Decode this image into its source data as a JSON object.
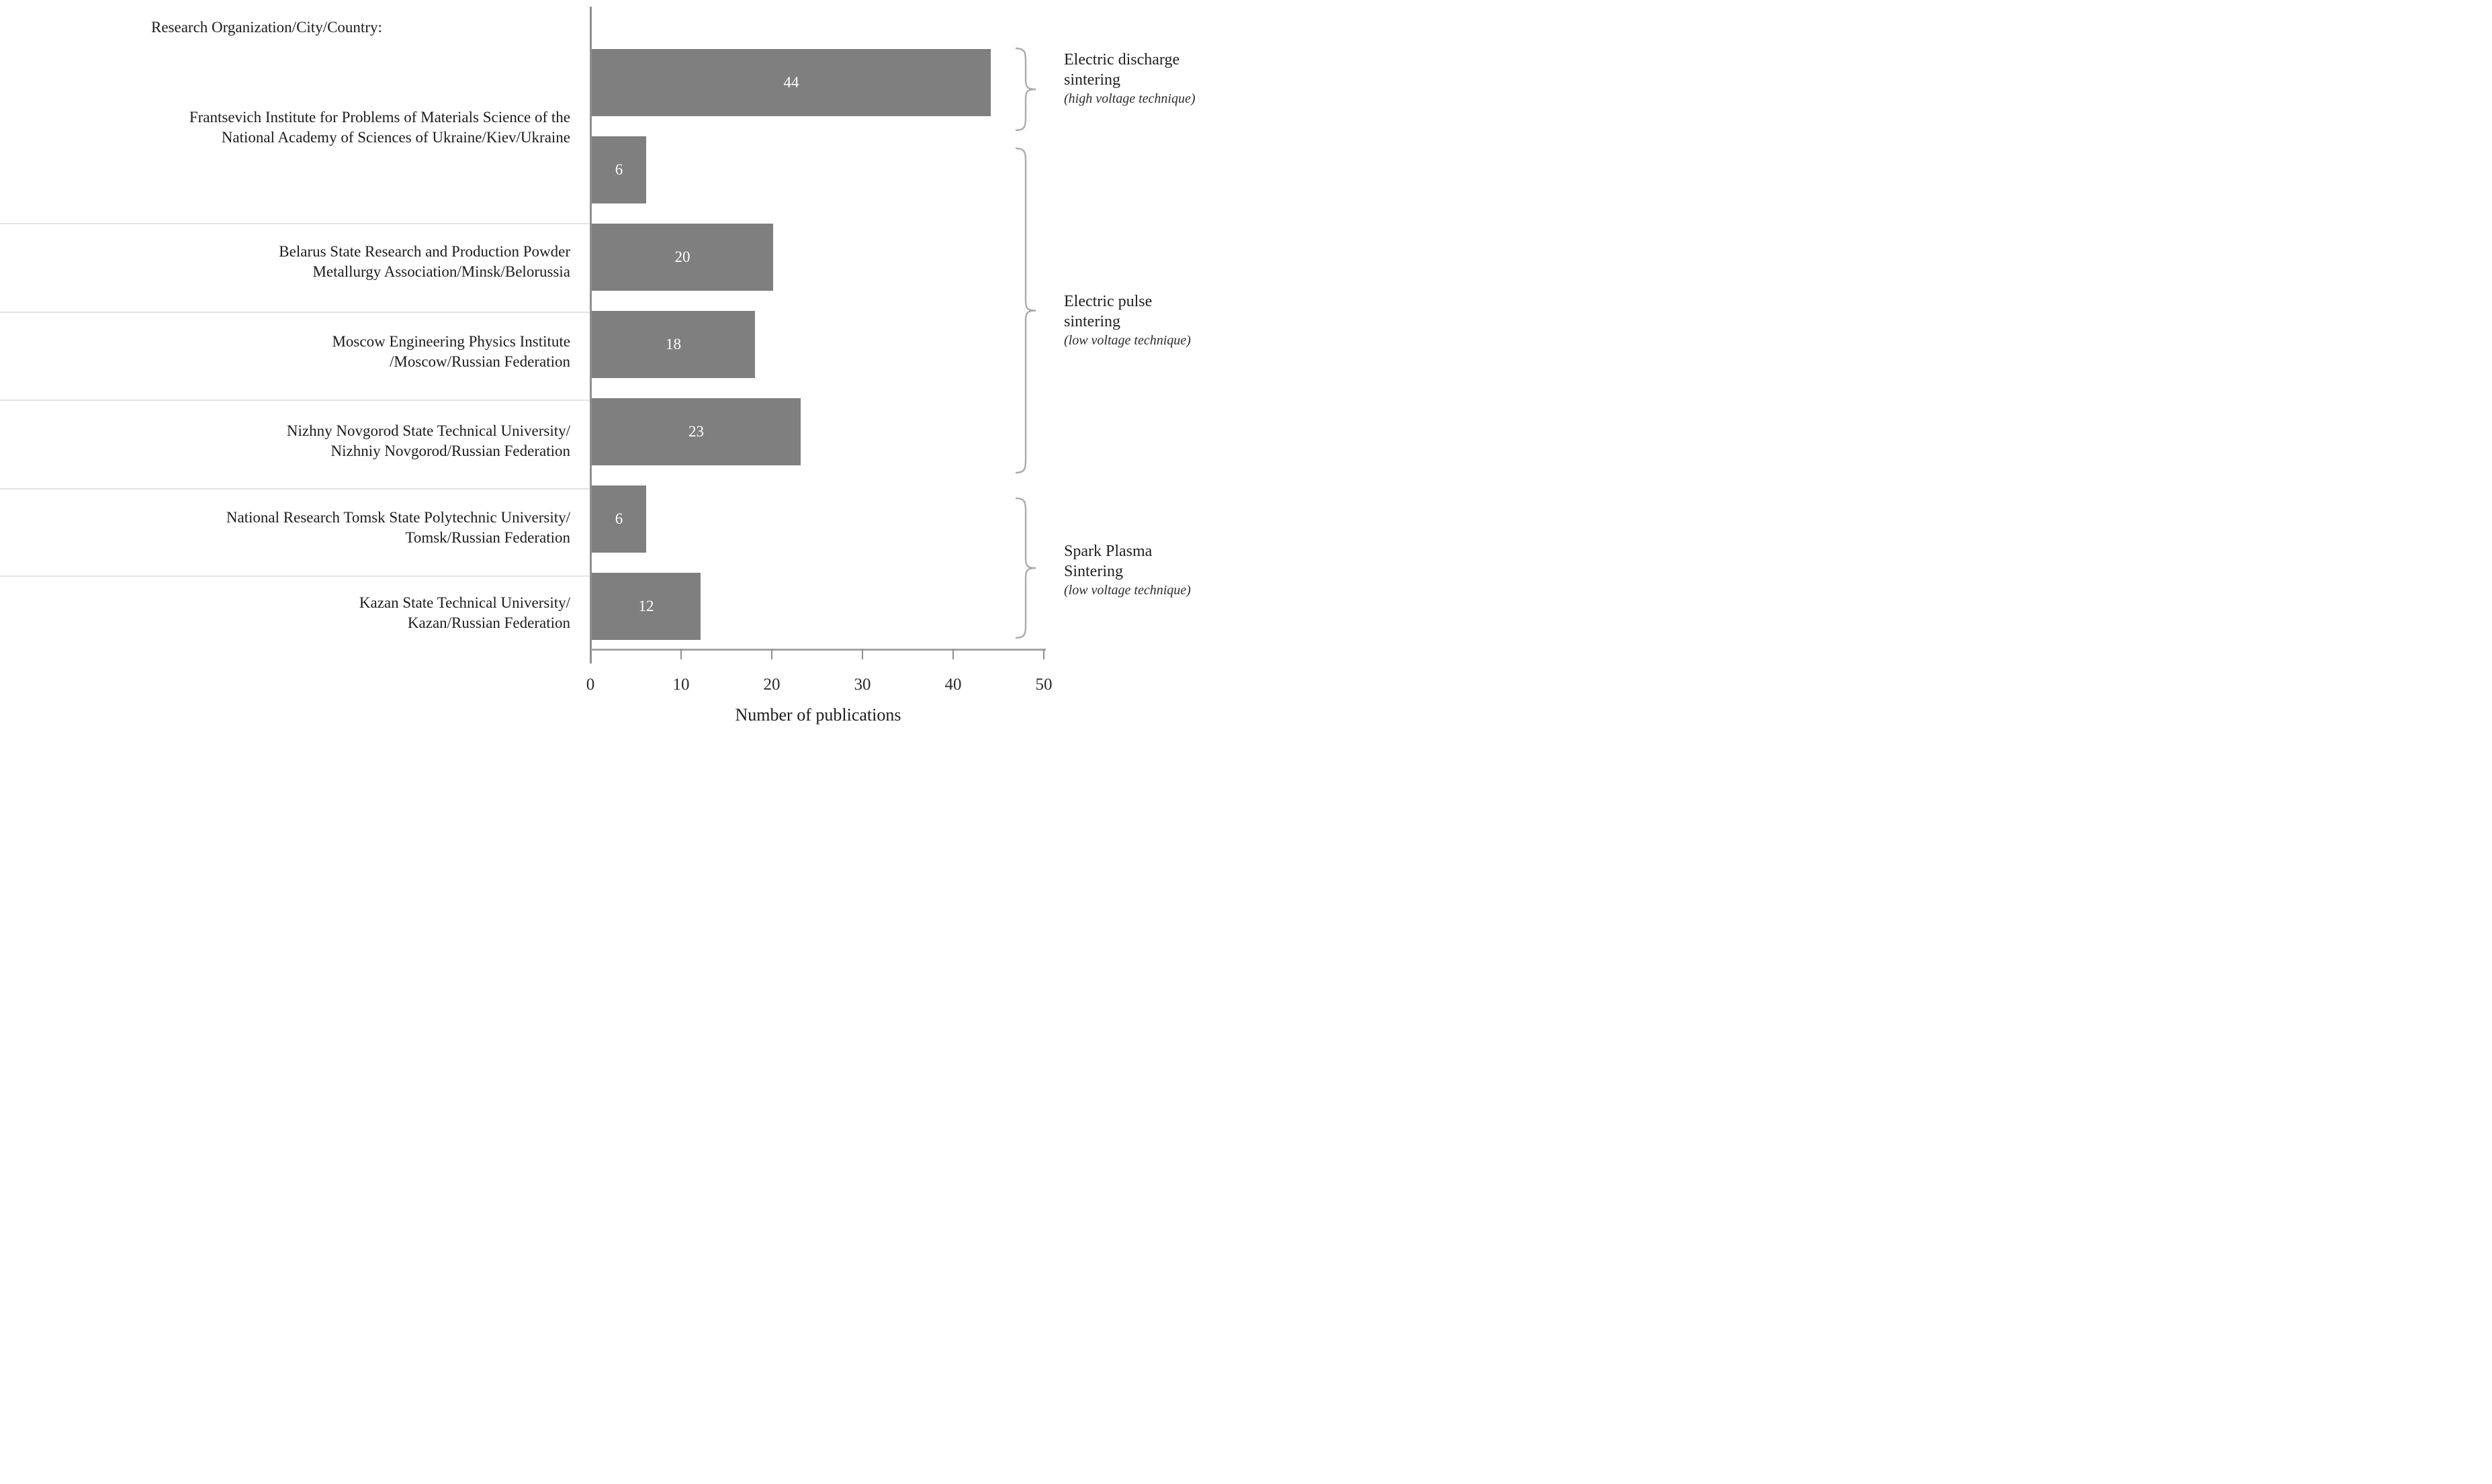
{
  "colors": {
    "bar": "#7f7f7f",
    "bar_value_text": "#ffffff",
    "axis_line": "#8f8f8f",
    "baseline": "#a6a6a6",
    "divider": "#e4e4e4",
    "bracket": "#ababab",
    "text": "#1c1c1c"
  },
  "chart_data": {
    "type": "bar",
    "orientation": "horizontal",
    "title": "Research Organization/City/Country:",
    "xlabel": "Number of publications",
    "xlim": [
      0,
      50
    ],
    "xticks": [
      "0",
      "10",
      "20",
      "30",
      "40",
      "50"
    ],
    "grid": false,
    "value_label_position": "inside-center",
    "categories": [
      {
        "lines": [
          "Frantsevich Institute for Problems of Materials Science of the",
          "National Academy of Sciences of Ukraine/Kiev/Ukraine"
        ]
      },
      {
        "lines": [
          "Belarus State Research and Production Powder",
          "Metallurgy Association/Minsk/Belorussia"
        ]
      },
      {
        "lines": [
          "Moscow Engineering Physics Institute",
          "/Moscow/Russian Federation"
        ]
      },
      {
        "lines": [
          "Nizhny Novgorod State Technical University/",
          "Nizhniy Novgorod/Russian Federation"
        ]
      },
      {
        "lines": [
          "National Research Tomsk State Polytechnic University/",
          "Tomsk/Russian Federation"
        ]
      },
      {
        "lines": [
          "Kazan State Technical University/",
          "Kazan/Russian Federation"
        ]
      }
    ],
    "bars": [
      {
        "organization_index": 0,
        "technique": "Electric discharge sintering",
        "value": 44
      },
      {
        "organization_index": 0,
        "technique": "Electric pulse sintering",
        "value": 6
      },
      {
        "organization_index": 1,
        "technique": "Electric pulse sintering",
        "value": 20
      },
      {
        "organization_index": 2,
        "technique": "Electric pulse sintering",
        "value": 18
      },
      {
        "organization_index": 3,
        "technique": "Electric pulse sintering",
        "value": 23
      },
      {
        "organization_index": 4,
        "technique": "Spark Plasma Sintering",
        "value": 6
      },
      {
        "organization_index": 5,
        "technique": "Spark Plasma Sintering",
        "value": 12
      }
    ],
    "groups": [
      {
        "lines": [
          "Electric discharge",
          "sintering"
        ],
        "caption": "(high voltage technique)",
        "bar_indices": [
          0
        ]
      },
      {
        "lines": [
          "Electric pulse",
          "sintering"
        ],
        "caption": "(low voltage technique)",
        "bar_indices": [
          1,
          2,
          3,
          4
        ]
      },
      {
        "lines": [
          "Spark Plasma",
          "Sintering"
        ],
        "caption": "(low voltage technique)",
        "bar_indices": [
          5,
          6
        ]
      }
    ]
  }
}
